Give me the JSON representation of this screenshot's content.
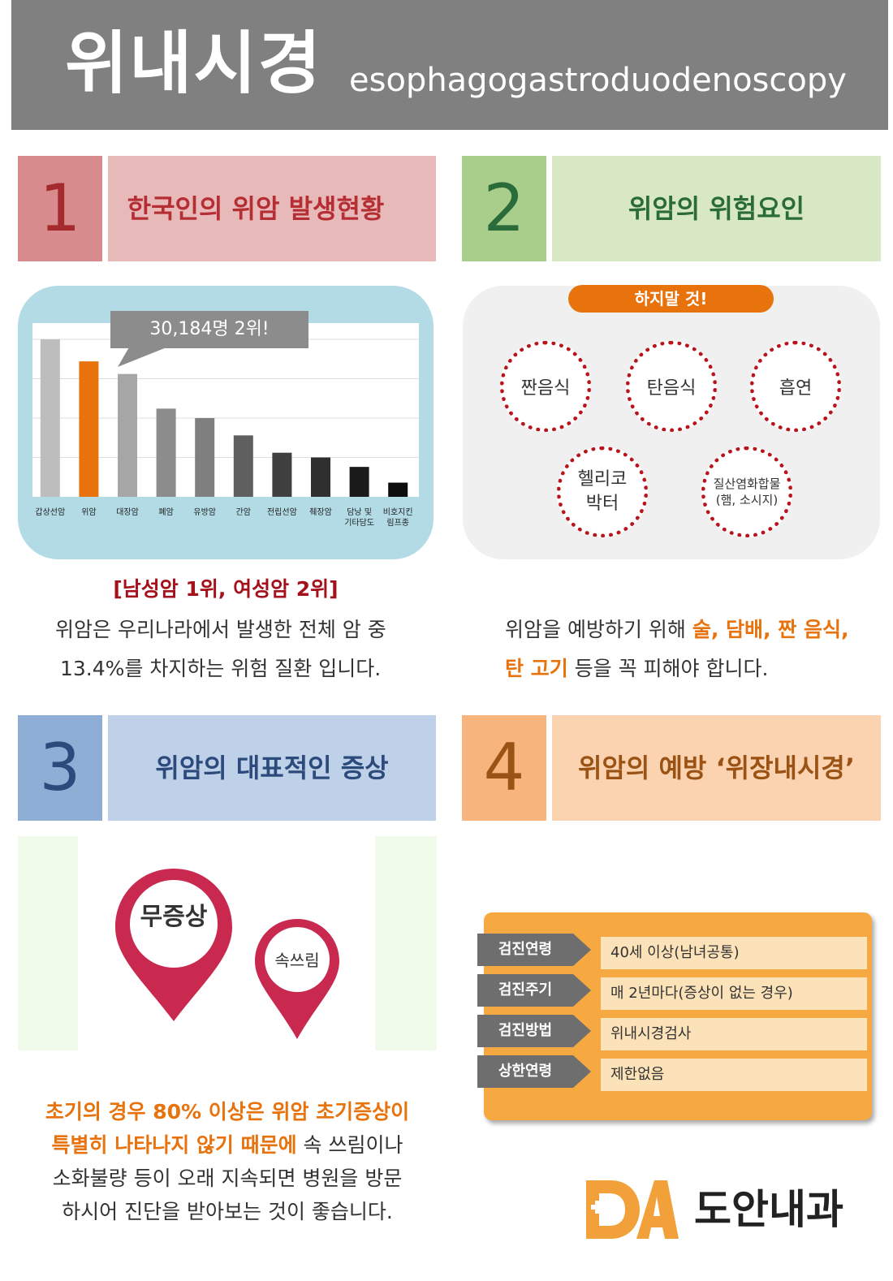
{
  "header": {
    "title": "위내시경",
    "subtitle": "esophagogastroduodenoscopy"
  },
  "sections": [
    {
      "num": "1",
      "title": "한국인의 위암 발생현황"
    },
    {
      "num": "2",
      "title": "위암의 위험요인"
    },
    {
      "num": "3",
      "title": "위암의 대표적인 증상"
    },
    {
      "num": "4",
      "title": "위암의 예방 ‘위장내시경’"
    }
  ],
  "chart_data": {
    "type": "bar",
    "categories": [
      "갑상선암",
      "위암",
      "대장암",
      "폐암",
      "유방암",
      "간암",
      "전립선암",
      "췌장암",
      "담낭 및 기타담도",
      "비호지킨 림프종"
    ],
    "values": [
      100,
      86,
      78,
      56,
      50,
      39,
      28,
      25,
      19,
      9
    ],
    "annotation": "30,184명 2위!",
    "highlight_index": 1,
    "highlight_color": "#e8720c"
  },
  "stat": {
    "headline": "[남성암 1위, 여성암 2위]",
    "line1": "위암은 우리나라에서 발생한 전체 암 중",
    "line2": "13.4%를 차지하는 위험 질환 입니다."
  },
  "risk": {
    "pill": "하지말 것!",
    "items": [
      "짠음식",
      "탄음식",
      "흡연",
      "헬리코 박터",
      "질산염화합물 (햄, 소시지)"
    ],
    "text_a": "위암을 예방하기 위해 ",
    "text_b": "술, 담배, 짠 음식,",
    "text_c": "탄 고기",
    "text_d": " 등을 꼭 피해야 합니다."
  },
  "symptoms": {
    "pin1": "무증상",
    "pin2": "속쓰림",
    "text_a": "초기의 경우 80% 이상은 위암 초기증상이",
    "text_b": "특별히 나타나지 않기 때문에",
    "text_c": " 속 쓰림이나",
    "text_d": "소화불량 등이 오래 지속되면 병원을 방문",
    "text_e": "하시어 진단을 받아보는 것이 좋습니다."
  },
  "checkup": {
    "rows": [
      {
        "label": "검진연령",
        "value": "40세 이상(남녀공통)"
      },
      {
        "label": "검진주기",
        "value": "매 2년마다(증상이 없는 경우)"
      },
      {
        "label": "검진방법",
        "value": "위내시경검사"
      },
      {
        "label": "상한연령",
        "value": "제한없음"
      }
    ]
  },
  "logo": {
    "mark": "DA",
    "name": "도안내과"
  }
}
